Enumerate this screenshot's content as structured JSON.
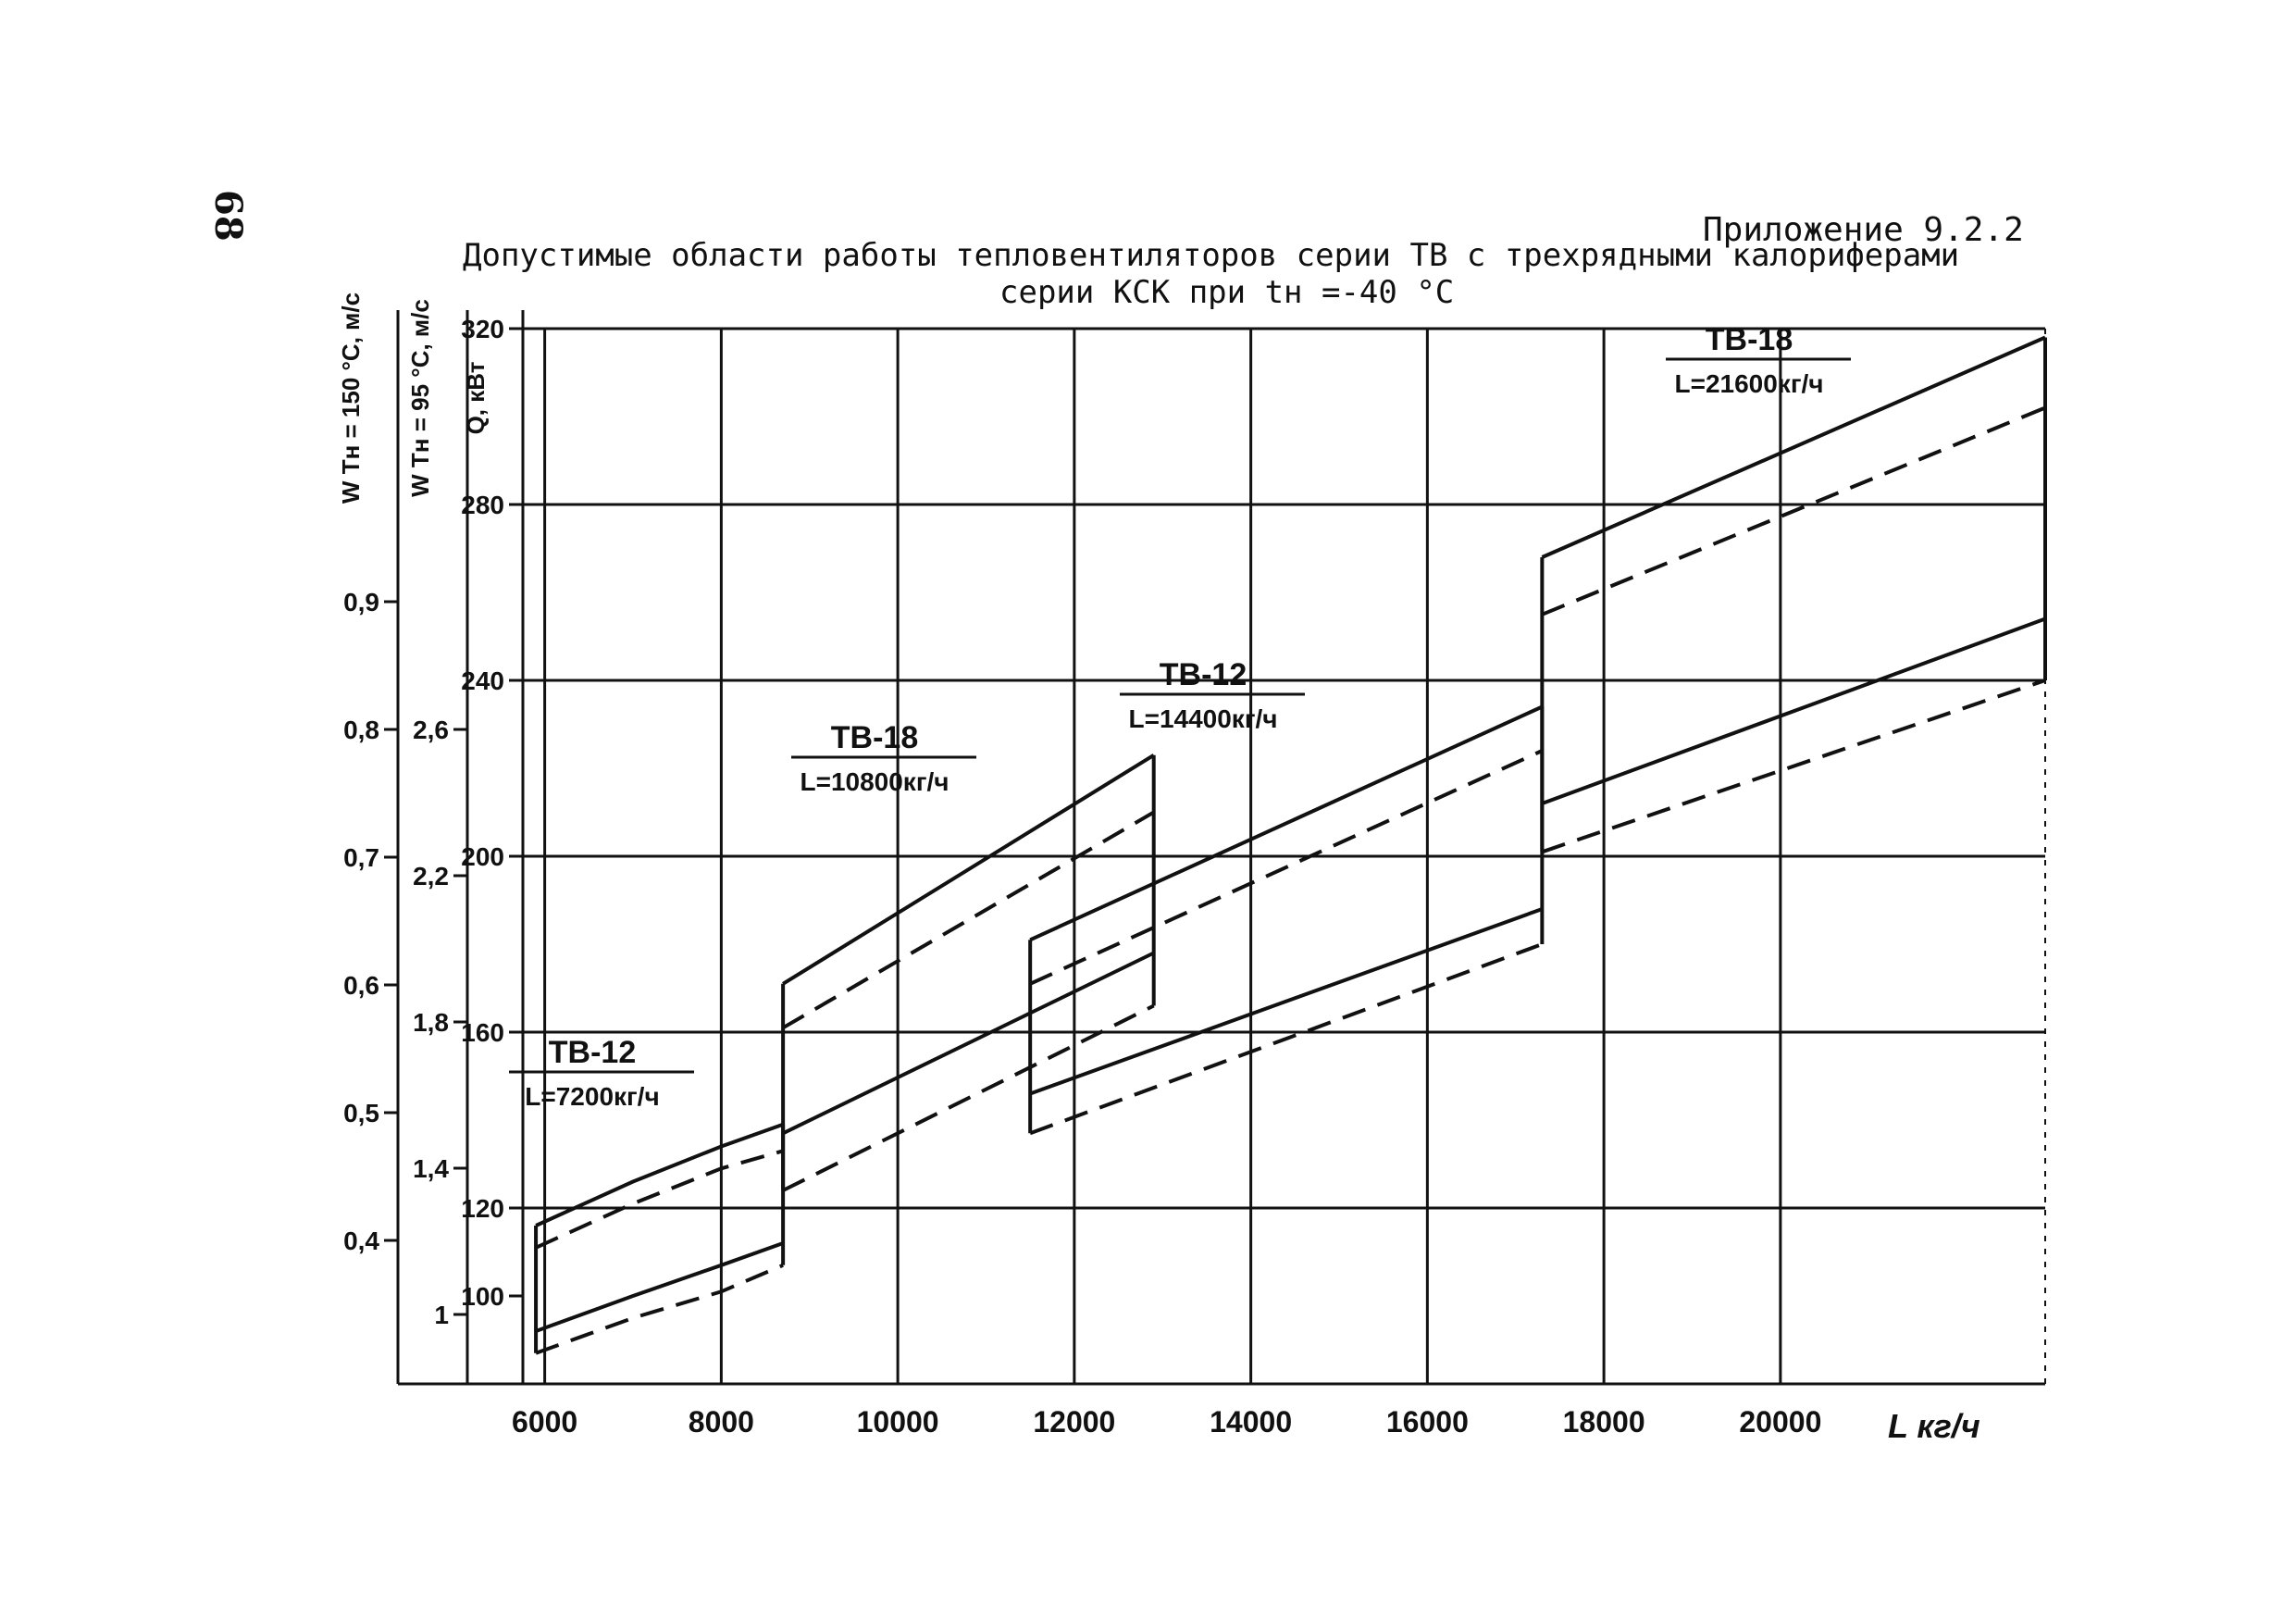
{
  "page_number": "68",
  "appendix": "Приложение 9.2.2",
  "title_line1": "Допустимые области работы тепловентиляторов серии ТВ с трехрядными калориферами",
  "title_line2": "серии КСК при  tн =-40 °С",
  "chart_data": {
    "type": "line",
    "xlabel": "L  кг/ч",
    "x_ticks": [
      {
        "value": 6000,
        "label": "6000"
      },
      {
        "value": 8000,
        "label": "8000"
      },
      {
        "value": 10000,
        "label": "10000"
      },
      {
        "value": 12000,
        "label": "12000"
      },
      {
        "value": 14000,
        "label": "14000"
      },
      {
        "value": 16000,
        "label": "16000"
      },
      {
        "value": 18000,
        "label": "18000"
      },
      {
        "value": 20000,
        "label": "20000"
      }
    ],
    "xlim": [
      5700,
      23000
    ],
    "ylim": [
      80,
      320
    ],
    "y_gridlines": [
      120,
      160,
      200,
      240,
      280,
      320
    ],
    "axes": [
      {
        "name": "Q",
        "label": "Q",
        "unit": "кВт",
        "ticks": [
          {
            "value": 100,
            "label": "100"
          },
          {
            "value": 120,
            "label": "120"
          },
          {
            "value": 160,
            "label": "160"
          },
          {
            "value": 200,
            "label": "200"
          },
          {
            "value": 240,
            "label": "240"
          },
          {
            "value": 280,
            "label": "280"
          },
          {
            "value": 320,
            "label": "320"
          }
        ]
      },
      {
        "name": "W_95",
        "label": "W  Tн = 95 °С",
        "unit": "м/с",
        "ticks": [
          {
            "value": 1.0,
            "label": "1"
          },
          {
            "value": 1.4,
            "label": "1,4"
          },
          {
            "value": 1.8,
            "label": "1,8"
          },
          {
            "value": 2.2,
            "label": "2,2"
          },
          {
            "value": 2.6,
            "label": "2,6"
          }
        ]
      },
      {
        "name": "W_150",
        "label": "W  Tн = 150 °С",
        "unit": "м/с",
        "ticks": [
          {
            "value": 0.4,
            "label": "0,4"
          },
          {
            "value": 0.5,
            "label": "0,5"
          },
          {
            "value": 0.6,
            "label": "0,6"
          },
          {
            "value": 0.7,
            "label": "0,7"
          },
          {
            "value": 0.8,
            "label": "0,8"
          },
          {
            "value": 0.9,
            "label": "0,9"
          }
        ]
      }
    ],
    "regions": [
      {
        "name": "ТВ-12",
        "label": "L=7200кг/ч",
        "x_range": [
          5900,
          8700
        ],
        "series": [
          {
            "style": "solid",
            "x": [
              5900,
              7000,
              8000,
              8700
            ],
            "y": [
              116,
              126,
              134,
              139
            ]
          },
          {
            "style": "dashed",
            "x": [
              5900,
              7000,
              8000,
              8700
            ],
            "y": [
              111,
              121,
              129,
              133
            ]
          },
          {
            "style": "solid",
            "x": [
              5900,
              7000,
              8000,
              8700
            ],
            "y": [
              92,
              100,
              107,
              112
            ]
          },
          {
            "style": "dashed",
            "x": [
              5900,
              7000,
              8000,
              8700
            ],
            "y": [
              87,
              95,
              101,
              107
            ]
          }
        ]
      },
      {
        "name": "ТВ-18",
        "label": "L=10800кг/ч",
        "x_range": [
          8700,
          12900
        ],
        "series": [
          {
            "style": "solid",
            "x": [
              8700,
              12900
            ],
            "y": [
              171,
              223
            ]
          },
          {
            "style": "dashed",
            "x": [
              8700,
              12900
            ],
            "y": [
              161,
              210
            ]
          },
          {
            "style": "solid",
            "x": [
              8700,
              12900
            ],
            "y": [
              137,
              178
            ]
          },
          {
            "style": "dashed",
            "x": [
              8700,
              12900
            ],
            "y": [
              124,
              166
            ]
          }
        ]
      },
      {
        "name": "ТВ-12",
        "label": "L=14400кг/ч",
        "x_range": [
          11500,
          17300
        ],
        "series": [
          {
            "style": "solid",
            "x": [
              11500,
              17300
            ],
            "y": [
              181,
              234
            ]
          },
          {
            "style": "dashed",
            "x": [
              11500,
              17300
            ],
            "y": [
              171,
              224
            ]
          },
          {
            "style": "solid",
            "x": [
              11500,
              17300
            ],
            "y": [
              146,
              188
            ]
          },
          {
            "style": "dashed",
            "x": [
              11500,
              17300
            ],
            "y": [
              137,
              180
            ]
          }
        ]
      },
      {
        "name": "ТВ-18",
        "label": "L=21600кг/ч",
        "x_range": [
          17300,
          23000
        ],
        "series": [
          {
            "style": "solid",
            "x": [
              17300,
              23000
            ],
            "y": [
              268,
              318
            ]
          },
          {
            "style": "dashed",
            "x": [
              17300,
              23000
            ],
            "y": [
              255,
              302
            ]
          },
          {
            "style": "solid",
            "x": [
              17300,
              23000
            ],
            "y": [
              212,
              254
            ]
          },
          {
            "style": "dashed",
            "x": [
              17300,
              23000
            ],
            "y": [
              201,
              240
            ]
          }
        ]
      }
    ]
  }
}
